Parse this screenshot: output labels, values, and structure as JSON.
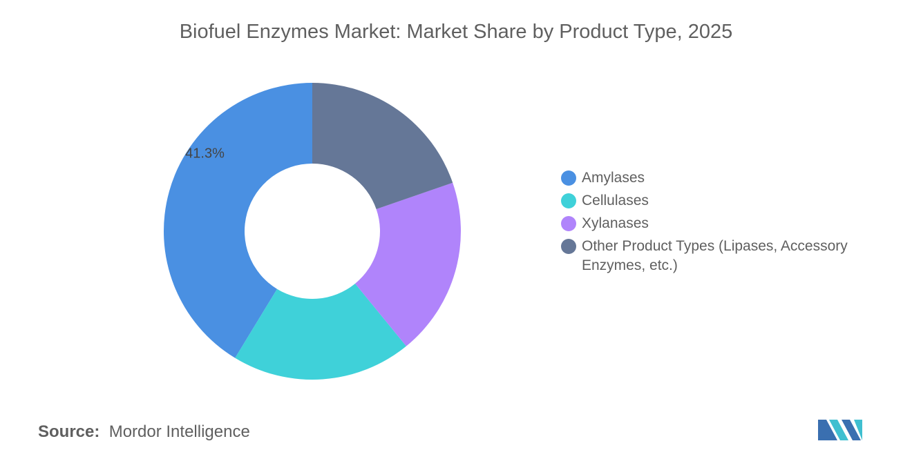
{
  "chart_data": {
    "type": "donut",
    "title": "Biofuel Enzymes Market: Market Share by Product Type, 2025",
    "categories": [
      "Amylases",
      "Cellulases",
      "Xylanases",
      "Other Product Types (Lipases, Accessory Enzymes, etc.)"
    ],
    "values": [
      41.3,
      19.6,
      19.4,
      19.7
    ],
    "value_labels": [
      "41.3%",
      null,
      null,
      null
    ],
    "colors": [
      "#4a90e2",
      "#3fd1d9",
      "#b084fb",
      "#657797"
    ],
    "source": {
      "label": "Source:",
      "text": "Mordor Intelligence"
    }
  }
}
